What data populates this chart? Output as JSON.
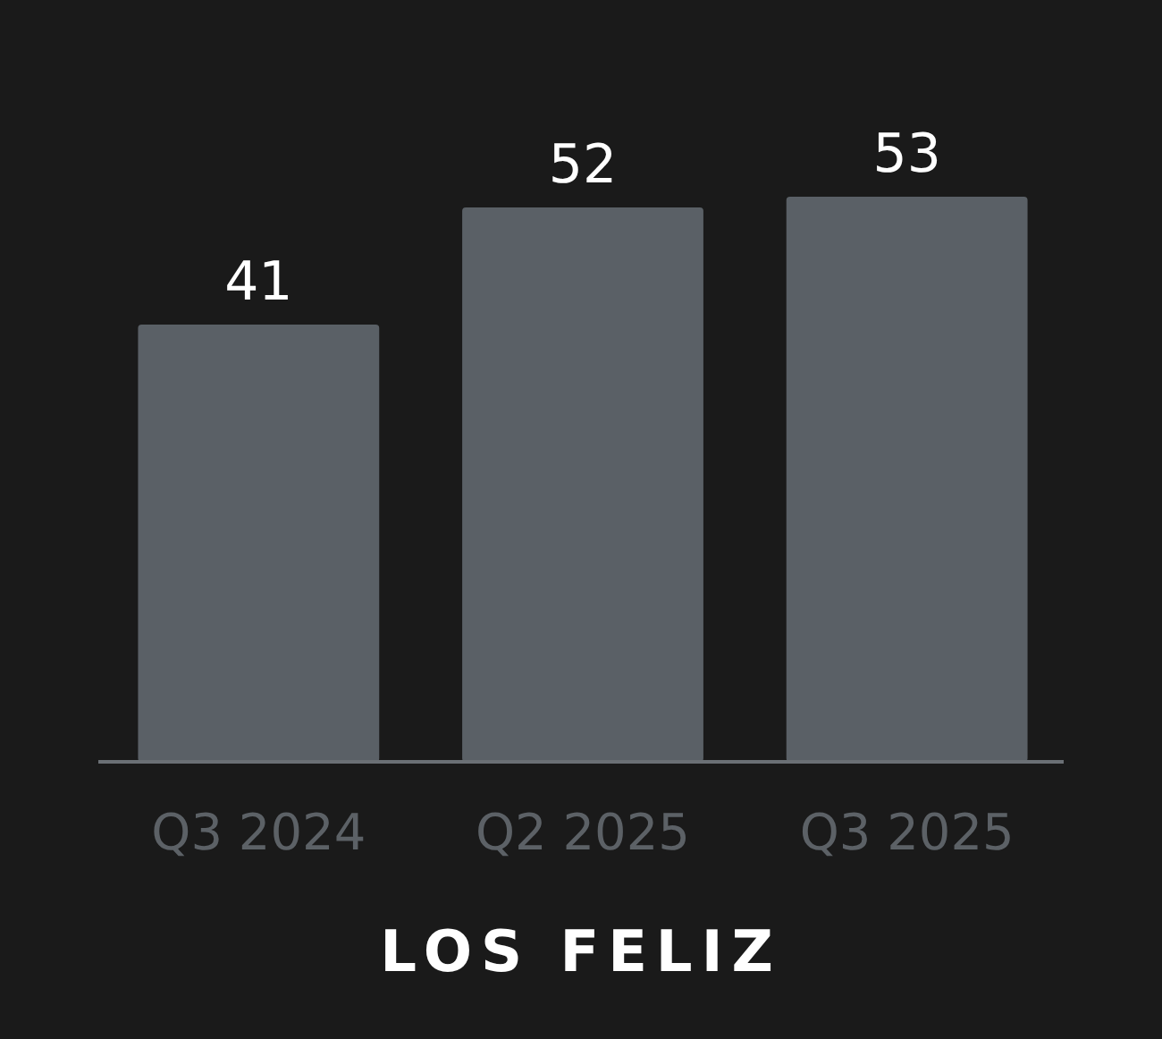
{
  "chart_data": {
    "type": "bar",
    "title": "LOS FELIZ",
    "categories": [
      "Q3 2024",
      "Q2 2025",
      "Q3 2025"
    ],
    "values": [
      41,
      52,
      53
    ],
    "color": "#5a6066",
    "data_labels": true,
    "relative": false
  }
}
